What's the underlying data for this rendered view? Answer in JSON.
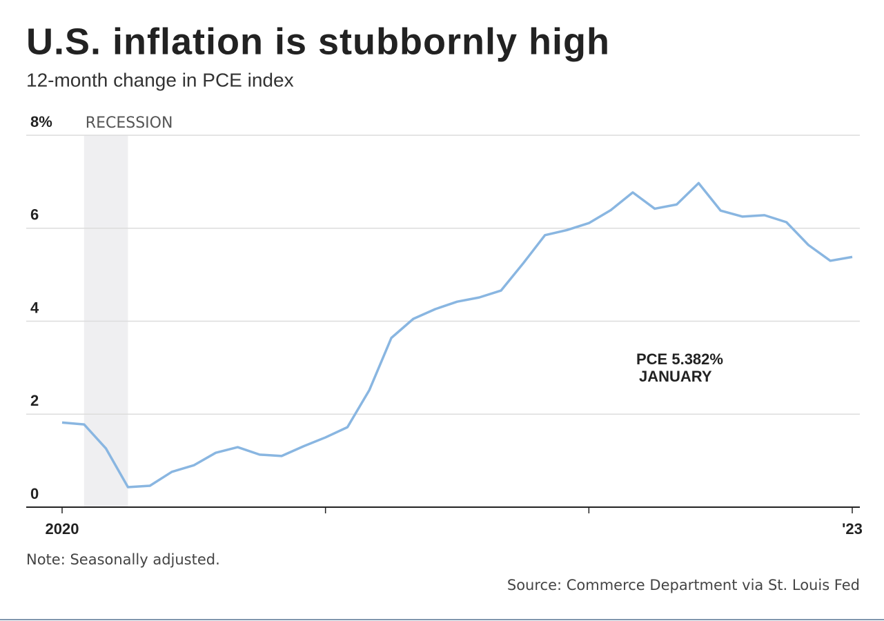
{
  "chart_data": {
    "type": "line",
    "title": "U.S. inflation is stubbornly high",
    "subtitle": "12-month change in PCE index",
    "categories": [
      "2020",
      null,
      null,
      null,
      null,
      null,
      null,
      null,
      null,
      null,
      null,
      null,
      null,
      null,
      null,
      null,
      null,
      null,
      null,
      null,
      null,
      null,
      null,
      null,
      null,
      null,
      null,
      null,
      null,
      null,
      null,
      null,
      null,
      null,
      null,
      null,
      "'23"
    ],
    "series": [
      {
        "name": "PCE",
        "color": "#89b6e1",
        "values": [
          1.82,
          1.78,
          1.26,
          0.43,
          0.46,
          0.76,
          0.9,
          1.17,
          1.29,
          1.13,
          1.1,
          1.31,
          1.5,
          1.72,
          2.52,
          3.64,
          4.05,
          4.26,
          4.42,
          4.51,
          4.66,
          5.24,
          5.85,
          5.96,
          6.11,
          6.39,
          6.77,
          6.42,
          6.51,
          6.97,
          6.38,
          6.25,
          6.28,
          6.13,
          5.64,
          5.3,
          5.382
        ]
      }
    ],
    "ylim": [
      0,
      8
    ],
    "yticks": [
      0,
      2,
      4,
      6,
      {
        "value": 8,
        "label": "8%"
      }
    ],
    "grid": true,
    "shade": {
      "label": "RECESSION",
      "from": 1,
      "to": 3
    },
    "annotations": [
      "PCE 5.382%",
      "JANUARY"
    ],
    "note": "Note: Seasonally adjusted.",
    "source": "Source: Commerce Department via St. Louis Fed"
  }
}
